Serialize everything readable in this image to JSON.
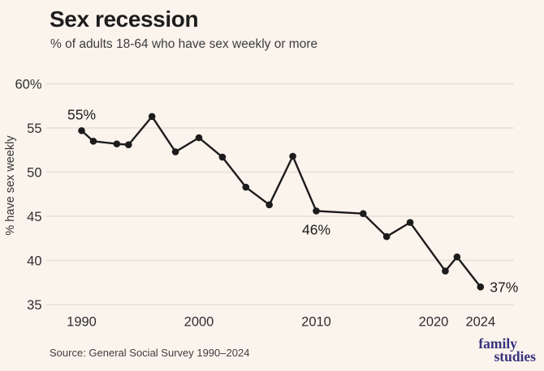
{
  "chart_data": {
    "type": "line",
    "title": "Sex recession",
    "subtitle": "% of adults 18-64 who have sex weekly or more",
    "ylabel": "% have sex weekly",
    "xlabel": "",
    "source": "Source: General Social Survey 1990–2024",
    "x": [
      1990,
      1991,
      1993,
      1994,
      1996,
      1998,
      2000,
      2002,
      2004,
      2006,
      2008,
      2010,
      2014,
      2016,
      2018,
      2021,
      2022,
      2024
    ],
    "series": [
      {
        "name": "% have sex weekly",
        "values": [
          54.7,
          53.5,
          53.2,
          53.1,
          56.3,
          52.3,
          53.9,
          51.7,
          48.3,
          46.3,
          51.8,
          45.6,
          45.3,
          42.7,
          44.3,
          38.8,
          40.4,
          37.0
        ]
      }
    ],
    "y_ticks": [
      {
        "value": 60,
        "label": "60%"
      },
      {
        "value": 55,
        "label": "55"
      },
      {
        "value": 50,
        "label": "50"
      },
      {
        "value": 45,
        "label": "45"
      },
      {
        "value": 40,
        "label": "40"
      },
      {
        "value": 35,
        "label": "35"
      }
    ],
    "x_ticks": [
      {
        "value": 1990,
        "label": "1990"
      },
      {
        "value": 2000,
        "label": "2000"
      },
      {
        "value": 2010,
        "label": "2010"
      },
      {
        "value": 2020,
        "label": "2020"
      },
      {
        "value": 2024,
        "label": "2024"
      }
    ],
    "ylim": [
      34,
      61
    ],
    "xlim": [
      1987,
      2027
    ],
    "grid": "horizontal-only",
    "legend": "none",
    "marker": "circle",
    "annotations": [
      {
        "x": 1990,
        "y": 54.7,
        "label": "55%",
        "position": "above"
      },
      {
        "x": 2010,
        "y": 45.6,
        "label": "46%",
        "position": "below"
      },
      {
        "x": 2024,
        "y": 37.0,
        "label": "37%",
        "position": "right"
      }
    ],
    "colors": {
      "line": "#1C1C1C",
      "grid": "#E5DFD8",
      "background": "#FBF4ED",
      "tick_text": "#2E2E2E",
      "annotation": "#1B1B1B"
    }
  },
  "footer": {
    "logo_line1": "family",
    "logo_line2": "studies",
    "logo_color": "#37327D"
  }
}
